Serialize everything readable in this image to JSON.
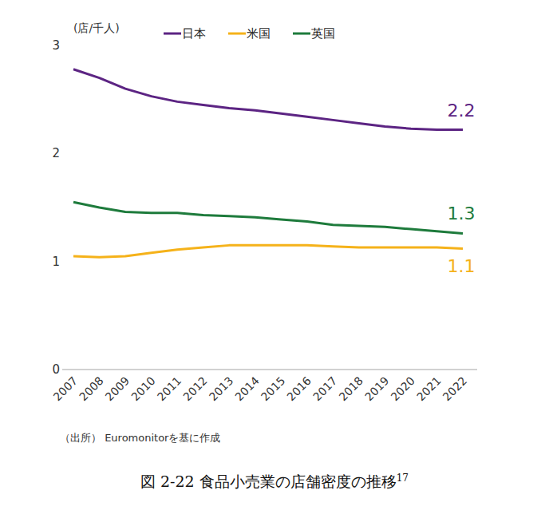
{
  "chart_data": {
    "type": "line",
    "title": "図 2-22 食品小売業の店舗密度の推移",
    "title_footnote": "17",
    "y_label": "(店/千人)",
    "source": "（出所） Euromonitorを基に作成",
    "categories": [
      "2007",
      "2008",
      "2009",
      "2010",
      "2011",
      "2012",
      "2013",
      "2014",
      "2015",
      "2016",
      "2017",
      "2018",
      "2019",
      "2020",
      "2021",
      "2022"
    ],
    "series": [
      {
        "name": "日本",
        "color": "#5c2483",
        "values": [
          2.78,
          2.7,
          2.6,
          2.53,
          2.48,
          2.45,
          2.42,
          2.4,
          2.37,
          2.34,
          2.31,
          2.28,
          2.25,
          2.23,
          2.22,
          2.22
        ],
        "value_labels": [
          null,
          null,
          null,
          null,
          null,
          null,
          null,
          null,
          null,
          null,
          null,
          null,
          null,
          null,
          null,
          "2.2"
        ]
      },
      {
        "name": "米国",
        "color": "#f5b21a",
        "values": [
          1.05,
          1.04,
          1.05,
          1.08,
          1.11,
          1.13,
          1.15,
          1.15,
          1.15,
          1.15,
          1.14,
          1.13,
          1.13,
          1.13,
          1.13,
          1.12
        ],
        "value_labels": [
          null,
          null,
          null,
          null,
          null,
          null,
          null,
          null,
          null,
          null,
          null,
          null,
          null,
          null,
          null,
          "1.1"
        ]
      },
      {
        "name": "英国",
        "color": "#1e7b3c",
        "values": [
          1.55,
          1.5,
          1.46,
          1.45,
          1.45,
          1.43,
          1.42,
          1.41,
          1.39,
          1.37,
          1.34,
          1.33,
          1.32,
          1.3,
          1.28,
          1.26
        ],
        "value_labels": [
          null,
          null,
          null,
          null,
          null,
          null,
          null,
          null,
          null,
          null,
          null,
          null,
          null,
          null,
          null,
          "1.3"
        ]
      }
    ],
    "ylim": [
      0,
      3
    ],
    "yticks": [
      0,
      1,
      2,
      3
    ],
    "grid": false,
    "legend": "top"
  }
}
